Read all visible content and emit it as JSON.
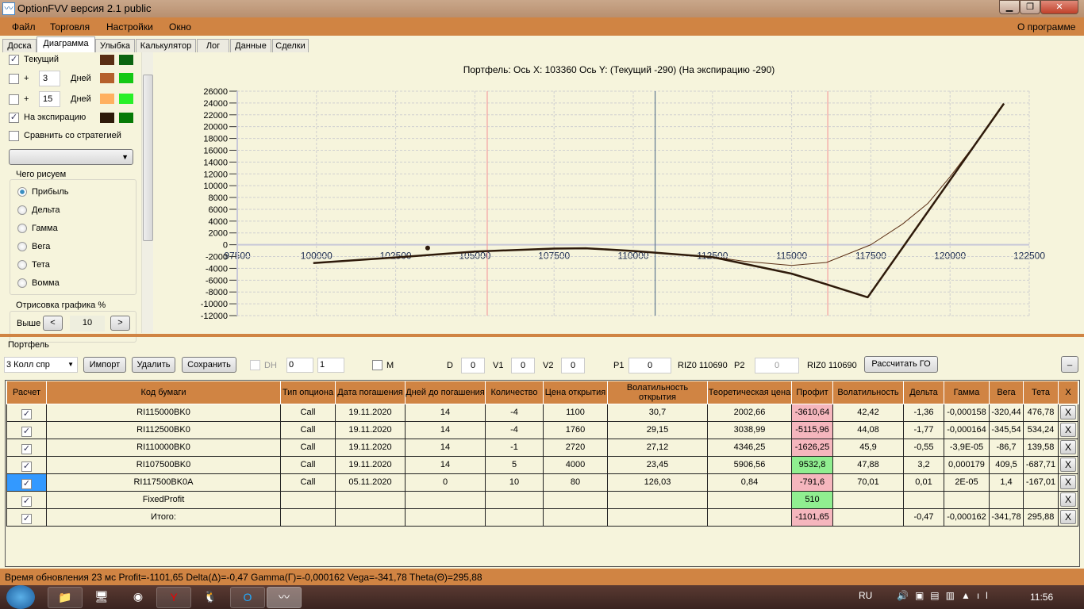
{
  "window": {
    "title": "OptionFVV версия 2.1 public",
    "min": "▁",
    "max": "❐",
    "close": "✕"
  },
  "menu": [
    "Файл",
    "Торговля",
    "Настройки",
    "Окно"
  ],
  "menu_right": "О программе",
  "tabs": [
    "Доска",
    "Диаграмма",
    "Улыбка",
    "Калькулятор",
    "Лог",
    "Данные",
    "Сделки"
  ],
  "active_tab": "Диаграмма",
  "left": {
    "current": {
      "label": "Текущий",
      "checked": true,
      "colors": [
        "#5a2e14",
        "#0b6410"
      ]
    },
    "plus3": {
      "plus": "+",
      "days": "3",
      "unit": "Дней",
      "checked": false,
      "colors": [
        "#b5602c",
        "#14c814"
      ]
    },
    "plus15": {
      "plus": "+",
      "days": "15",
      "unit": "Дней",
      "checked": false,
      "colors": [
        "#ffb060",
        "#28f028"
      ]
    },
    "expiry": {
      "label": "На экспирацию",
      "checked": true,
      "colors": [
        "#2e1a0a",
        "#067a06"
      ]
    },
    "compare": {
      "label": "Сравнить со стратегией",
      "checked": false
    },
    "draw_group": "Чего рисуем",
    "radios": [
      "Прибыль",
      "Дельта",
      "Гамма",
      "Вега",
      "Тета",
      "Вомма"
    ],
    "radio_selected": "Прибыль",
    "render_group": "Отрисовка графика %",
    "above_label": "Выше",
    "prev": "<",
    "next": ">",
    "above_value": "10"
  },
  "chart_data": {
    "type": "line",
    "title": "Портфель: Ось X: 103360 Ось Y:  (Текущий -290)  (На экспирацию -290)",
    "xlim": [
      97500,
      122500
    ],
    "ylim": [
      -12000,
      26000
    ],
    "xticks": [
      97500,
      100000,
      102500,
      105000,
      107500,
      110000,
      112500,
      115000,
      117500,
      120000,
      122500
    ],
    "yticks": [
      26000,
      24000,
      22000,
      20000,
      18000,
      16000,
      14000,
      12000,
      10000,
      8000,
      6000,
      4000,
      2000,
      0,
      -2000,
      -4000,
      -6000,
      -8000,
      -10000,
      -12000
    ],
    "grid": true,
    "vlines": [
      {
        "x": 105390,
        "color": "#f4a0a0"
      },
      {
        "x": 110690,
        "color": "#607890"
      },
      {
        "x": 116140,
        "color": "#f4a0a0"
      }
    ],
    "marker": {
      "x": 103360,
      "y": -290
    },
    "series": [
      {
        "color": "#5a2e14",
        "width": 1,
        "points": [
          [
            99900,
            -3100
          ],
          [
            102500,
            -2150
          ],
          [
            105000,
            -1150
          ],
          [
            107500,
            -650
          ],
          [
            108500,
            -600
          ],
          [
            110000,
            -1050
          ],
          [
            112500,
            -2050
          ],
          [
            113500,
            -2800
          ],
          [
            115000,
            -3500
          ],
          [
            116100,
            -3000
          ],
          [
            117500,
            0
          ],
          [
            118500,
            3500
          ],
          [
            119300,
            7000
          ],
          [
            120000,
            11500
          ],
          [
            121000,
            18500
          ],
          [
            121700,
            23900
          ]
        ]
      },
      {
        "color": "#2e1a0a",
        "width": 2.5,
        "points": [
          [
            99900,
            -3100
          ],
          [
            102500,
            -2150
          ],
          [
            105000,
            -1150
          ],
          [
            107500,
            -650
          ],
          [
            108500,
            -600
          ],
          [
            110000,
            -1050
          ],
          [
            112500,
            -2100
          ],
          [
            115000,
            -4900
          ],
          [
            116100,
            -6700
          ],
          [
            117400,
            -8900
          ],
          [
            120000,
            10940
          ],
          [
            121700,
            23900
          ]
        ]
      }
    ]
  },
  "portfolio": {
    "label": "Портфель",
    "selected": "3 Колл спр",
    "import": "Импорт",
    "delete": "Удалить",
    "save": "Сохранить",
    "dh": "DH",
    "spin1": "0",
    "spin2": "1",
    "m": "M",
    "d_label": "D",
    "d": "0",
    "v1_label": "V1",
    "v1": "0",
    "v2_label": "V2",
    "v2": "0",
    "p1_label": "P1",
    "p1": "0",
    "riz1": "RIZ0 110690",
    "p2_label": "P2",
    "p2": "0",
    "riz2": "RIZ0 110690",
    "calc_go": "Рассчитать ГО",
    "collapse": "_"
  },
  "table": {
    "headers": [
      "Расчет",
      "Код бумаги",
      "Тип опциона",
      "Дата погашения",
      "Дней до погашения",
      "Количество",
      "Цена открытия",
      "Волатильность открытия",
      "Теоретическая цена",
      "Профит",
      "Волатильность",
      "Дельта",
      "Гамма",
      "Вега",
      "Тета",
      "X"
    ],
    "rows": [
      [
        "RI115000BK0",
        "Call",
        "19.11.2020",
        "14",
        "-4",
        "1100",
        "30,7",
        "2002,66",
        "-3610,64",
        "42,42",
        "-1,36",
        "-0,000158",
        "-320,44",
        "476,78"
      ],
      [
        "RI112500BK0",
        "Call",
        "19.11.2020",
        "14",
        "-4",
        "1760",
        "29,15",
        "3038,99",
        "-5115,96",
        "44,08",
        "-1,77",
        "-0,000164",
        "-345,54",
        "534,24"
      ],
      [
        "RI110000BK0",
        "Call",
        "19.11.2020",
        "14",
        "-1",
        "2720",
        "27,12",
        "4346,25",
        "-1626,25",
        "45,9",
        "-0,55",
        "-3,9E-05",
        "-86,7",
        "139,58"
      ],
      [
        "RI107500BK0",
        "Call",
        "19.11.2020",
        "14",
        "5",
        "4000",
        "23,45",
        "5906,56",
        "9532,8",
        "47,88",
        "3,2",
        "0,000179",
        "409,5",
        "-687,71"
      ],
      [
        "RI117500BK0A",
        "Call",
        "05.11.2020",
        "0",
        "10",
        "80",
        "126,03",
        "0,84",
        "-791,6",
        "70,01",
        "0,01",
        "2E-05",
        "1,4",
        "-167,01"
      ],
      [
        "FixedProfit",
        "",
        "",
        "",
        "",
        "",
        "",
        "",
        "510",
        "",
        "",
        "",
        "",
        ""
      ],
      [
        "Итого:",
        "",
        "",
        "",
        "",
        "",
        "",
        "",
        "-1101,65",
        "",
        "-0,47",
        "-0,000162",
        "-341,78",
        "295,88"
      ]
    ],
    "delete_label": "X"
  },
  "status": "Время обновления 23 мс  Profit=-1101,65 Delta(Δ)=-0,47 Gamma(Γ)=-0,000162 Vega=-341,78 Theta(Θ)=295,88",
  "taskbar": {
    "lang": "RU",
    "time": "11:56"
  }
}
